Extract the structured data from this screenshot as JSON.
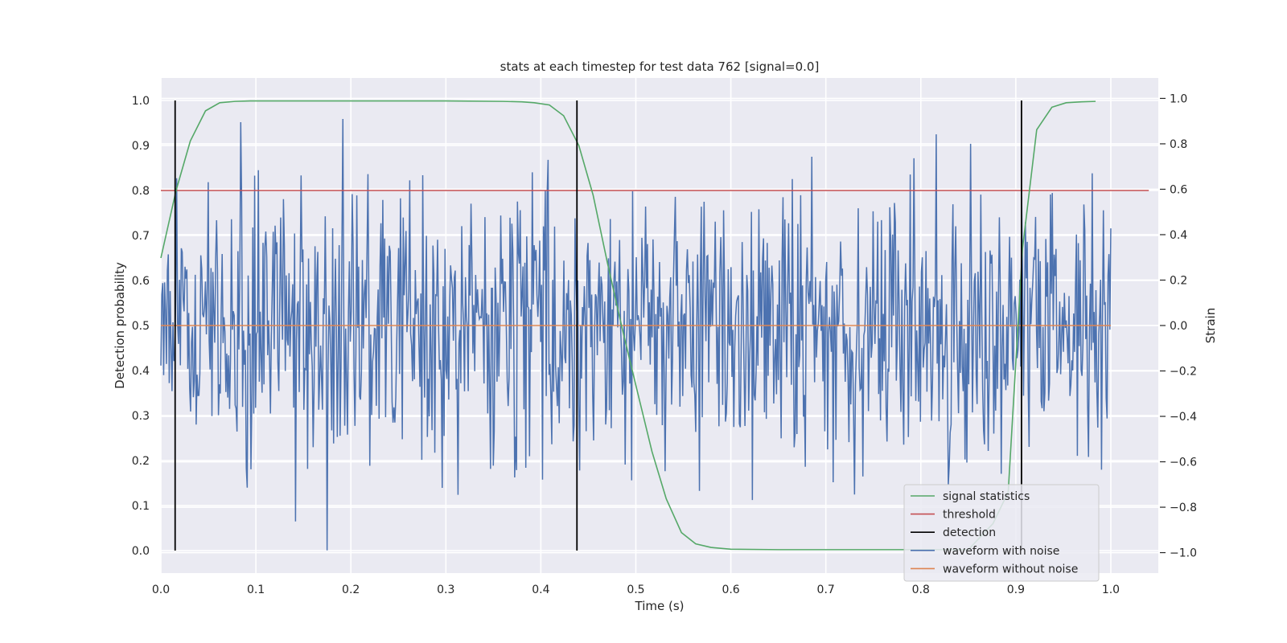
{
  "chart_data": {
    "type": "line",
    "title": "stats at each timestep for test data 762 [signal=0.0]",
    "xlabel": "Time (s)",
    "ylabel": "Detection probability",
    "ylabel_right": "Strain",
    "xlim": [
      0.0,
      1.05
    ],
    "ylim": [
      -0.05,
      1.05
    ],
    "ylim_right": [
      -1.09,
      1.09
    ],
    "xticks": [
      "0.0",
      "0.1",
      "0.2",
      "0.3",
      "0.4",
      "0.5",
      "0.6",
      "0.7",
      "0.8",
      "0.9",
      "1.0"
    ],
    "yticks": [
      "0.0",
      "0.1",
      "0.2",
      "0.3",
      "0.4",
      "0.5",
      "0.6",
      "0.7",
      "0.8",
      "0.9",
      "1.0"
    ],
    "yticks_right": [
      "−1.0",
      "−0.8",
      "−0.6",
      "−0.4",
      "−0.2",
      "0.0",
      "0.2",
      "0.4",
      "0.6",
      "0.8",
      "1.0"
    ],
    "grid": true,
    "legend_position": "lower-right",
    "colors": {
      "signal_statistics": "#55a868",
      "threshold": "#c44e52",
      "detection": "#000000",
      "waveform_with_noise": "#4c72b0",
      "waveform_without_noise": "#dd8452",
      "plot_background": "#eaeaf2",
      "grid": "#ffffff"
    },
    "series": [
      {
        "name": "signal statistics",
        "axis": "left",
        "x": [
          0.0,
          0.016,
          0.031,
          0.047,
          0.062,
          0.078,
          0.094,
          0.125,
          0.2,
          0.3,
          0.36,
          0.38,
          0.393,
          0.409,
          0.424,
          0.44,
          0.455,
          0.47,
          0.486,
          0.502,
          0.517,
          0.532,
          0.548,
          0.563,
          0.579,
          0.6,
          0.65,
          0.75,
          0.85,
          0.876,
          0.892,
          0.907,
          0.922,
          0.938,
          0.953,
          0.969,
          0.984
        ],
        "y": [
          0.65,
          0.8,
          0.91,
          0.977,
          0.995,
          0.998,
          0.999,
          0.999,
          0.999,
          0.999,
          0.998,
          0.997,
          0.995,
          0.99,
          0.966,
          0.9,
          0.79,
          0.64,
          0.49,
          0.35,
          0.22,
          0.115,
          0.04,
          0.015,
          0.007,
          0.003,
          0.002,
          0.002,
          0.002,
          0.06,
          0.13,
          0.67,
          0.935,
          0.985,
          0.995,
          0.997,
          0.998
        ]
      },
      {
        "name": "threshold",
        "axis": "left",
        "x": [
          0.0,
          1.04
        ],
        "y": [
          0.8,
          0.8
        ]
      },
      {
        "name": "detection",
        "axis": "left",
        "type": "vlines",
        "x": [
          0.015,
          0.438,
          0.906
        ],
        "y_range": [
          0.0,
          1.0
        ]
      },
      {
        "name": "waveform with noise",
        "axis": "right",
        "x_range": [
          0.0,
          1.0
        ],
        "n_points": 1024,
        "y_min": -0.99,
        "y_max": 1.0
      },
      {
        "name": "waveform without noise",
        "axis": "right",
        "x": [
          0.0,
          1.0
        ],
        "y": [
          0.0,
          0.0
        ]
      }
    ]
  }
}
